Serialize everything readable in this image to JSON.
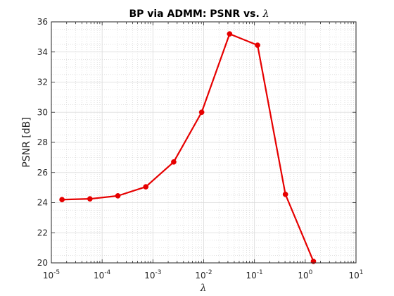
{
  "chart_data": {
    "type": "line",
    "title": "BP via ADMM: PSNR vs. ",
    "title_symbol": "λ",
    "xlabel": "λ",
    "ylabel": "PSNR [dB]",
    "xscale": "log",
    "xlim": [
      1e-05,
      10
    ],
    "ylim": [
      20,
      36
    ],
    "x_tick_base": "10",
    "x_tick_exponents": [
      "-5",
      "-4",
      "-3",
      "-2",
      "-1",
      "0",
      "1"
    ],
    "y_ticks": [
      "20",
      "22",
      "24",
      "26",
      "28",
      "30",
      "32",
      "34",
      "36"
    ],
    "grid": true,
    "minor_grid": true,
    "series": [
      {
        "color": "#e60000",
        "marker": "circle",
        "x": [
          1.62e-05,
          5.75e-05,
          0.000204,
          0.000724,
          0.00257,
          0.00912,
          0.0324,
          0.115,
          0.407,
          1.45
        ],
        "y": [
          24.2,
          24.25,
          24.45,
          25.05,
          26.7,
          30.0,
          35.2,
          34.45,
          24.55,
          20.1
        ]
      }
    ]
  }
}
